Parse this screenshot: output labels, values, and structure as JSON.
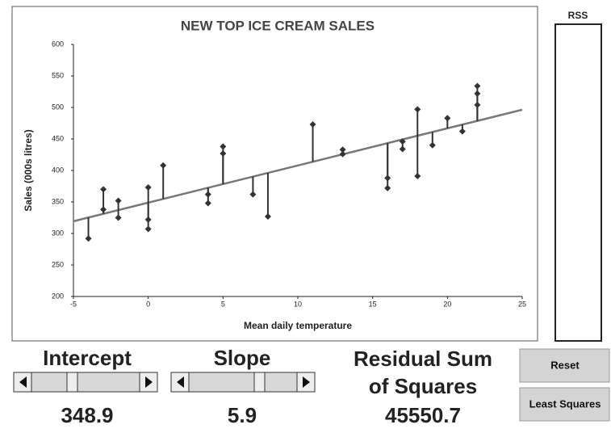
{
  "chart_data": {
    "type": "scatter",
    "title": "NEW TOP ICE CREAM SALES",
    "xlabel": "Mean daily temperature",
    "ylabel": "Sales (000s litres)",
    "x": [
      -4,
      -3,
      -3,
      -2,
      -2,
      0,
      0,
      0,
      1,
      4,
      4,
      5,
      5,
      7,
      8,
      11,
      13,
      13,
      16,
      16,
      17,
      17,
      18,
      18,
      19,
      20,
      21,
      22,
      22,
      22
    ],
    "series": [
      {
        "color": "#333333",
        "values": [
          292,
          370,
          338,
          352,
          325,
          373,
          322,
          307,
          408,
          362,
          348,
          438,
          427,
          362,
          327,
          473,
          433,
          426,
          388,
          372,
          446,
          434,
          497,
          391,
          440,
          483,
          462,
          534,
          522,
          504
        ]
      }
    ],
    "line_color": "#777777",
    "xlim": [
      -5,
      25
    ],
    "ylim": [
      200,
      600
    ],
    "xticks": [
      -5,
      0,
      5,
      10,
      15,
      20,
      25
    ],
    "yticks": [
      200,
      250,
      300,
      350,
      400,
      450,
      500,
      550,
      600
    ]
  },
  "rss_panel": {
    "label": "RSS"
  },
  "controls": {
    "intercept": {
      "label": "Intercept",
      "value": 348.9
    },
    "slope": {
      "label": "Slope",
      "value": 5.9
    },
    "rss": {
      "label_line1": "Residual Sum",
      "label_line2": "of Squares",
      "value": 45550.7
    }
  },
  "buttons": {
    "reset": "Reset",
    "least_squares": "Least Squares"
  }
}
